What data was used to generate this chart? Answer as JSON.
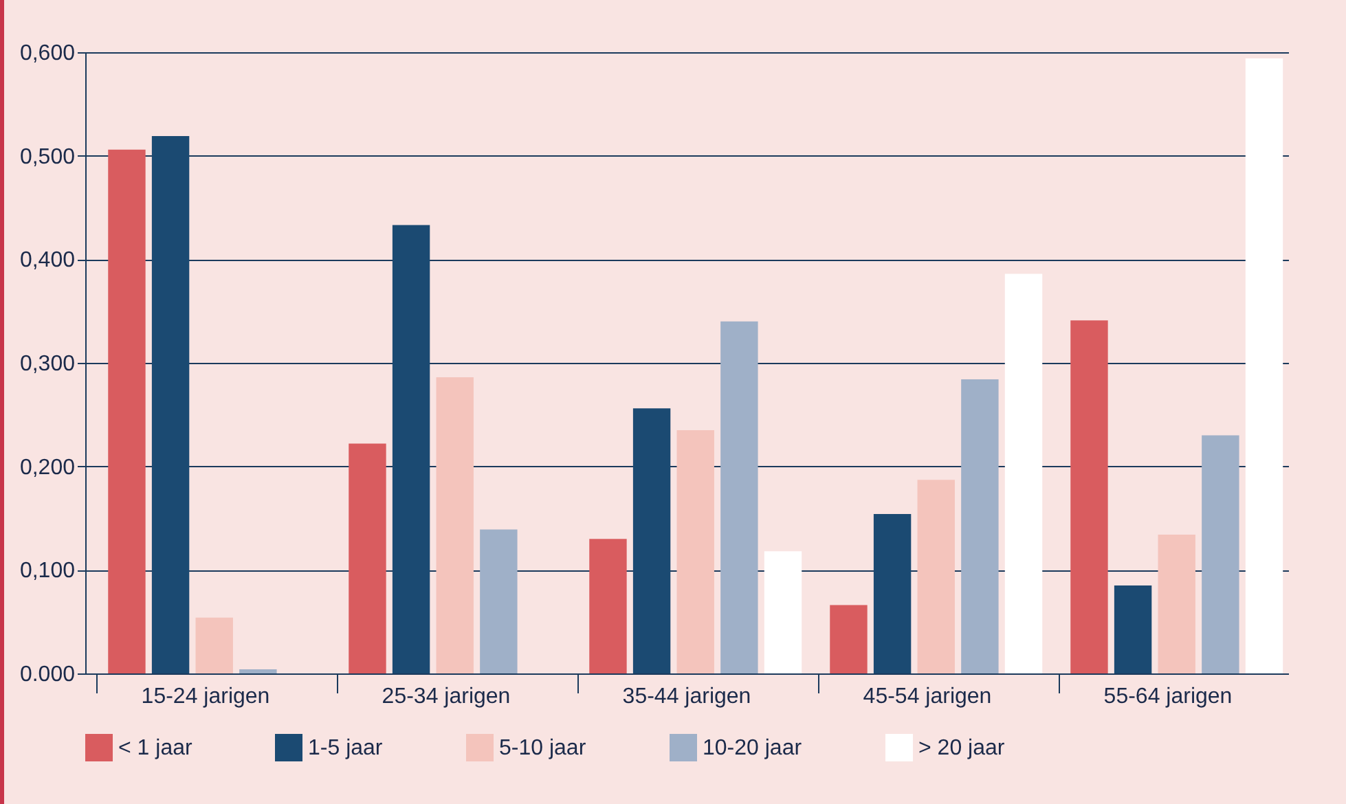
{
  "chart_data": {
    "type": "bar",
    "categories": [
      "15-24 jarigen",
      "25-34 jarigen",
      "35-44 jarigen",
      "45-54 jarigen",
      "55-64 jarigen"
    ],
    "series": [
      {
        "name": "< 1 jaar",
        "color": "#d95c5f",
        "values": [
          0.506,
          0.222,
          0.13,
          0.066,
          0.341
        ]
      },
      {
        "name": "1-5 jaar",
        "color": "#1b4a72",
        "values": [
          0.519,
          0.433,
          0.256,
          0.154,
          0.085
        ]
      },
      {
        "name": "5-10 jaar",
        "color": "#f4c4bc",
        "values": [
          0.054,
          0.286,
          0.235,
          0.187,
          0.134
        ]
      },
      {
        "name": "10-20 jaar",
        "color": "#9fb0c8",
        "values": [
          0.004,
          0.139,
          0.34,
          0.284,
          0.23
        ]
      },
      {
        "name": "> 20 jaar",
        "color": "#ffffff",
        "values": [
          0,
          0,
          0.118,
          0.386,
          0.594
        ]
      }
    ],
    "ylim": [
      0,
      0.6
    ],
    "yticks": [
      {
        "value": 0,
        "label": "0.000"
      },
      {
        "value": 0.1,
        "label": "0,100"
      },
      {
        "value": 0.2,
        "label": "0,200"
      },
      {
        "value": 0.3,
        "label": "0,300"
      },
      {
        "value": 0.4,
        "label": "0,400"
      },
      {
        "value": 0.5,
        "label": "0,500"
      },
      {
        "value": 0.6,
        "label": "0,600"
      }
    ],
    "grid": "y",
    "legend": "bottom"
  }
}
